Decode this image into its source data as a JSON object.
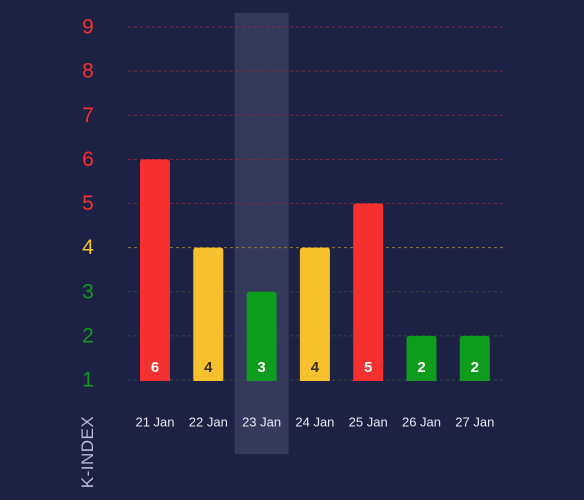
{
  "chart_data": {
    "type": "bar",
    "title": "",
    "xlabel": "",
    "ylabel": "K-INDEX",
    "categories": [
      "21 Jan",
      "22 Jan",
      "23 Jan",
      "24 Jan",
      "25 Jan",
      "26 Jan",
      "27 Jan"
    ],
    "values": [
      6,
      4,
      3,
      4,
      5,
      2,
      2
    ],
    "data_labels": [
      "6",
      "4",
      "3",
      "4",
      "5",
      "2",
      "2"
    ],
    "y_ticks": [
      "1",
      "2",
      "3",
      "4",
      "5",
      "6",
      "7",
      "8",
      "9"
    ],
    "ylim": [
      1,
      9
    ],
    "grid": true,
    "highlighted_category": "23 Jan",
    "colors": {
      "background": "#1d2144",
      "low": "#0e9c1c",
      "moderate": "#f7c12d",
      "high": "#f5302e",
      "grid_red": "#7a2c47",
      "grid_yellow": "#8c7a3a",
      "grid_green": "#2f4a49",
      "highlight": "#3a3e60",
      "x_tick": "#e6e8f2"
    }
  }
}
